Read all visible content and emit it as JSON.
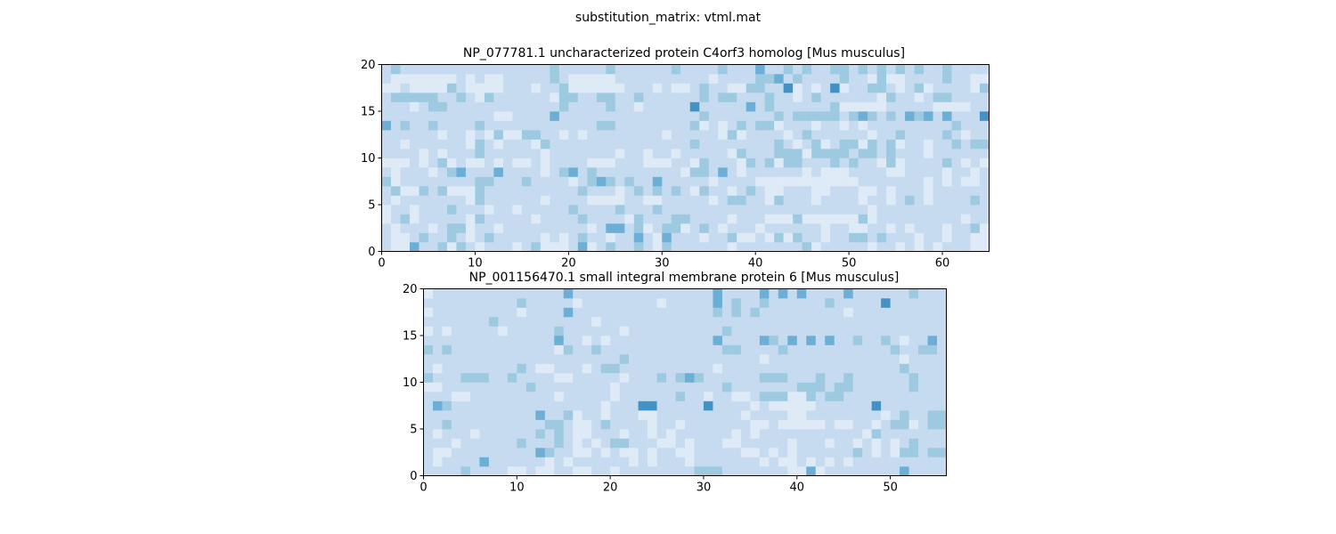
{
  "suptitle": "substitution_matrix: vtml.mat",
  "colormap": [
    "#f7fbff",
    "#deebf7",
    "#c6dbef",
    "#9ecae1",
    "#6baed6",
    "#4292c6",
    "#2171b5",
    "#08519c",
    "#08306b"
  ],
  "chart_data": [
    {
      "type": "heatmap",
      "title": "NP_077781.1 uncharacterized protein C4orf3 homolog [Mus musculus]",
      "xlim": [
        0,
        65
      ],
      "ylim": [
        0,
        20
      ],
      "xticks": [
        "0",
        "10",
        "20",
        "30",
        "40",
        "50",
        "60"
      ],
      "yticks": [
        "0",
        "5",
        "10",
        "15",
        "20"
      ],
      "rows": [
        "21142231321222123111241232232132222221222222231222221221212122211",
        "21123223212322222121232212242142221223112131322122332322212212211",
        "21222123312212222222221244231233123212221222222122112212122212231",
        "12312222213222221222232222132223322221222111311111131222222222122",
        "12212223222122122222322223222322222222222222222222221222222222222",
        "21222222213222222122221111221122222123322132221222212212321222232",
        "23113231113222222222232221232323213221232112221122211212221222222",
        "31222222223322232222123432322422222122221111111111122222221212112",
        "21222123422242222123423222222222133242122222212111222211222212212",
        "11121231211212112122221112221112213222132313322232322131222232121",
        "22221212223222222122222221221221222221322233313333233232221222222",
        "22122222213212221322222222222222232222222232123123313231221223233",
        "22222212212131133221212222222212222213122221232222221223222232122",
        "42322322223222222222222332222222231212323312221221212222222223222",
        "22222222222211222242222222222222223222222232333332343232434242225",
        "22212332222222222223222232212222252222242322222231111122222111122",
        "23333322321322222213322332232222223233222322123222222132212332222",
        "11211113211112221223111111222121123221133225121251223321231222213",
        "21111111212112222232111112222222222122223342322223221311222232211",
        "23222222222222222232222232222223222232224223232233232323232232222"
      ]
    },
    {
      "type": "heatmap",
      "title": "NP_001156470.1 small integral membrane protein 6 [Mus musculus]",
      "xlim": [
        0,
        56
      ],
      "ylim": [
        0,
        20
      ],
      "xticks": [
        "0",
        "10",
        "20",
        "30",
        "40",
        "50"
      ],
      "yticks": [
        "0",
        "5",
        "10",
        "15",
        "20"
      ],
      "rows": [
        "22223222211211221122122222222333222222211412222222242222",
        "21222242222221212222221212221222222212112121212222222222",
        "21122222222243221121211212211222221121212222223212133233",
        "22212222223222321212332221121222112222212221221212123222",
        "21222122222232321122212212122222212122222222222132222222",
        "22322222222223321123222212212222222112111112112212331233",
        "22222222222242231221222112222222221222211222222221232233",
        "24322222222222222221222552222252222121111122222252222222",
        "22211222222222122222122222232212211233311323322222222222",
        "11222222222322222222122222222222322222223332332222223222",
        "32223332232222112222212223234322222233322232232222223222",
        "21222222223211222123322222222221222222222222222222232222",
        "22222222222222222222232222222222222212222222222222212222",
        "32322222222222132232222222222222332222322222222222322332",
        "22222222222222422121222222222224222243242424223223212242",
        "12122222122222322222212222222222322222222222222222222222",
        "22222223222222222212222222222222222222222222222222222222",
        "12222222221222242222222222222223232322222222212222222222",
        "22222222223222221222222221222224232232222223222225222222",
        "12222222222222242222222222222224222242424222242222223222"
      ]
    }
  ]
}
